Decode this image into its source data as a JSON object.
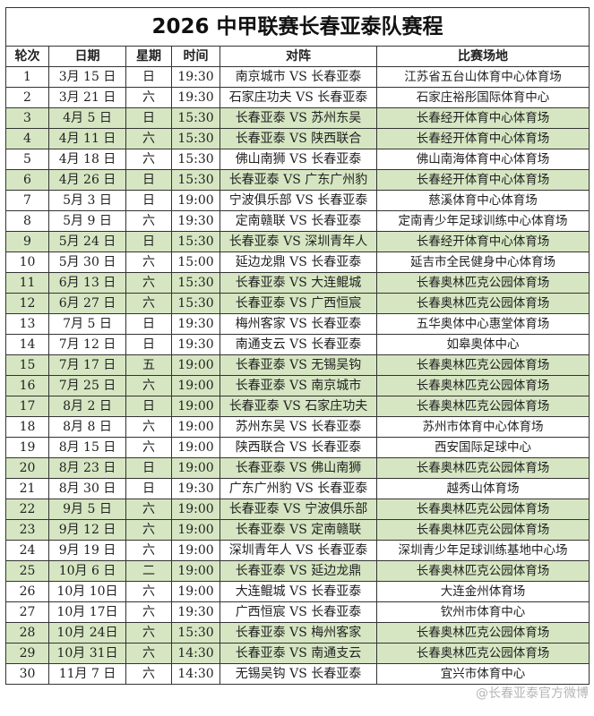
{
  "title": "2026 中甲联赛长春亚泰队赛程",
  "headers": [
    "轮次",
    "日期",
    "星期",
    "时间",
    "对阵",
    "比赛场地"
  ],
  "colors": {
    "home_row": "#d6e6c2",
    "border": "#333333"
  },
  "rows": [
    {
      "round": "1",
      "date": "3月 15 日",
      "weekday": "日",
      "time": "19:30",
      "match": "南京城市 VS 长春亚泰",
      "venue": "江苏省五台山体育中心体育场",
      "home": false
    },
    {
      "round": "2",
      "date": "3月 21 日",
      "weekday": "六",
      "time": "19:30",
      "match": "石家庄功夫 VS 长春亚泰",
      "venue": "石家庄裕彤国际体育中心",
      "home": false
    },
    {
      "round": "3",
      "date": "4月 5 日",
      "weekday": "日",
      "time": "15:30",
      "match": "长春亚泰 VS 苏州东吴",
      "venue": "长春经开体育中心体育场",
      "home": true
    },
    {
      "round": "4",
      "date": "4月 11 日",
      "weekday": "六",
      "time": "15:30",
      "match": "长春亚泰 VS 陕西联合",
      "venue": "长春经开体育中心体育场",
      "home": true
    },
    {
      "round": "5",
      "date": "4月 18 日",
      "weekday": "六",
      "time": "15:30",
      "match": "佛山南狮 VS 长春亚泰",
      "venue": "佛山南海体育中心体育场",
      "home": false
    },
    {
      "round": "6",
      "date": "4月 26 日",
      "weekday": "日",
      "time": "15:30",
      "match": "长春亚泰 VS 广东广州豹",
      "venue": "长春经开体育中心体育场",
      "home": true
    },
    {
      "round": "7",
      "date": "5月 3 日",
      "weekday": "日",
      "time": "19:00",
      "match": "宁波俱乐部 VS 长春亚泰",
      "venue": "慈溪体育中心体育场",
      "home": false
    },
    {
      "round": "8",
      "date": "5月 9 日",
      "weekday": "六",
      "time": "19:30",
      "match": "定南赣联 VS 长春亚泰",
      "venue": "定南青少年足球训练中心体育场",
      "home": false
    },
    {
      "round": "9",
      "date": "5月 24 日",
      "weekday": "日",
      "time": "15:30",
      "match": "长春亚泰 VS 深圳青年人",
      "venue": "长春经开体育中心体育场",
      "home": true
    },
    {
      "round": "10",
      "date": "5月 30 日",
      "weekday": "六",
      "time": "15:00",
      "match": "延边龙鼎 VS 长春亚泰",
      "venue": "延吉市全民健身中心体育场",
      "home": false
    },
    {
      "round": "11",
      "date": "6月 13 日",
      "weekday": "六",
      "time": "15:30",
      "match": "长春亚泰 VS 大连鲲城",
      "venue": "长春奥林匹克公园体育场",
      "home": true
    },
    {
      "round": "12",
      "date": "6月 27 日",
      "weekday": "六",
      "time": "15:30",
      "match": "长春亚泰 VS 广西恒宸",
      "venue": "长春奥林匹克公园体育场",
      "home": true
    },
    {
      "round": "13",
      "date": "7月 5 日",
      "weekday": "日",
      "time": "19:30",
      "match": "梅州客家 VS 长春亚泰",
      "venue": "五华奥体中心惠堂体育场",
      "home": false
    },
    {
      "round": "14",
      "date": "7月 12 日",
      "weekday": "日",
      "time": "19:30",
      "match": "南通支云 VS 长春亚泰",
      "venue": "如皋奥体中心",
      "home": false
    },
    {
      "round": "15",
      "date": "7月 17 日",
      "weekday": "五",
      "time": "19:00",
      "match": "长春亚泰 VS 无锡吴钩",
      "venue": "长春奥林匹克公园体育场",
      "home": true
    },
    {
      "round": "16",
      "date": "7月 25 日",
      "weekday": "六",
      "time": "19:00",
      "match": "长春亚泰 VS 南京城市",
      "venue": "长春奥林匹克公园体育场",
      "home": true
    },
    {
      "round": "17",
      "date": "8月 2 日",
      "weekday": "日",
      "time": "19:00",
      "match": "长春亚泰 VS 石家庄功夫",
      "venue": "长春奥林匹克公园体育场",
      "home": true
    },
    {
      "round": "18",
      "date": "8月 8 日",
      "weekday": "六",
      "time": "19:00",
      "match": "苏州东吴 VS 长春亚泰",
      "venue": "苏州市体育中心体育场",
      "home": false
    },
    {
      "round": "19",
      "date": "8月 15 日",
      "weekday": "六",
      "time": "19:00",
      "match": "陕西联合 VS 长春亚泰",
      "venue": "西安国际足球中心",
      "home": false
    },
    {
      "round": "20",
      "date": "8月 23 日",
      "weekday": "日",
      "time": "19:00",
      "match": "长春亚泰 VS 佛山南狮",
      "venue": "长春奥林匹克公园体育场",
      "home": true
    },
    {
      "round": "21",
      "date": "8月 30 日",
      "weekday": "日",
      "time": "19:30",
      "match": "广东广州豹 VS 长春亚泰",
      "venue": "越秀山体育场",
      "home": false
    },
    {
      "round": "22",
      "date": "9月 5 日",
      "weekday": "六",
      "time": "19:00",
      "match": "长春亚泰 VS 宁波俱乐部",
      "venue": "长春奥林匹克公园体育场",
      "home": true
    },
    {
      "round": "23",
      "date": "9月 12 日",
      "weekday": "六",
      "time": "19:00",
      "match": "长春亚泰 VS 定南赣联",
      "venue": "长春奥林匹克公园体育场",
      "home": true
    },
    {
      "round": "24",
      "date": "9月 19 日",
      "weekday": "六",
      "time": "19:00",
      "match": "深圳青年人 VS 长春亚泰",
      "venue": "深圳青少年足球训练基地中心场",
      "home": false
    },
    {
      "round": "25",
      "date": "10月 6 日",
      "weekday": "二",
      "time": "19:00",
      "match": "长春亚泰 VS 延边龙鼎",
      "venue": "长春奥林匹克公园体育场",
      "home": true
    },
    {
      "round": "26",
      "date": "10月 10日",
      "weekday": "六",
      "time": "19:00",
      "match": "大连鲲城 VS 长春亚泰",
      "venue": "大连金州体育场",
      "home": false
    },
    {
      "round": "27",
      "date": "10月 17日",
      "weekday": "六",
      "time": "19:30",
      "match": "广西恒宸 VS 长春亚泰",
      "venue": "钦州市体育中心",
      "home": false
    },
    {
      "round": "28",
      "date": "10月 24日",
      "weekday": "六",
      "time": "15:30",
      "match": "长春亚泰 VS 梅州客家",
      "venue": "长春奥林匹克公园体育场",
      "home": true
    },
    {
      "round": "29",
      "date": "10月 31日",
      "weekday": "六",
      "time": "14:30",
      "match": "长春亚泰 VS 南通支云",
      "venue": "长春奥林匹克公园体育场",
      "home": true
    },
    {
      "round": "30",
      "date": "11月 7 日",
      "weekday": "六",
      "time": "14:30",
      "match": "无锡吴钩 VS 长春亚泰",
      "venue": "宜兴市体育中心",
      "home": false
    }
  ],
  "watermark": "@长春亚泰官方微博"
}
